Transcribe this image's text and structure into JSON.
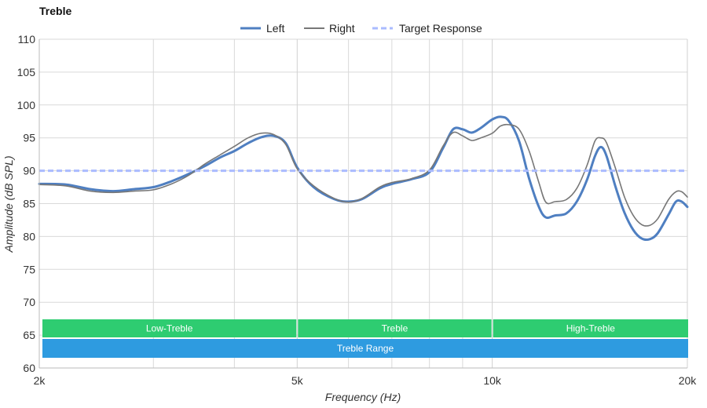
{
  "chart_data": {
    "type": "line",
    "title": "Treble",
    "xlabel": "Frequency (Hz)",
    "ylabel": "Amplitude (dB SPL)",
    "x_scale": "log",
    "xlim": [
      2000,
      20000
    ],
    "ylim": [
      60,
      110
    ],
    "x_ticks": [
      {
        "value": 2000,
        "label": "2k"
      },
      {
        "value": 5000,
        "label": "5k"
      },
      {
        "value": 10000,
        "label": "10k"
      },
      {
        "value": 20000,
        "label": "20k"
      }
    ],
    "x_minor_gridlines": [
      3000,
      4000,
      6000,
      7000,
      8000,
      9000
    ],
    "y_ticks": [
      60,
      65,
      70,
      75,
      80,
      85,
      90,
      95,
      100,
      105,
      110
    ],
    "grid": true,
    "legend_position": "top-center",
    "series": [
      {
        "name": "Left",
        "color": "#4f7fc1",
        "style": "solid-thick",
        "points": [
          [
            2000,
            88.0
          ],
          [
            2200,
            87.9
          ],
          [
            2400,
            87.2
          ],
          [
            2600,
            86.9
          ],
          [
            2800,
            87.2
          ],
          [
            3000,
            87.5
          ],
          [
            3200,
            88.4
          ],
          [
            3400,
            89.5
          ],
          [
            3600,
            90.7
          ],
          [
            3800,
            92.0
          ],
          [
            4000,
            93.0
          ],
          [
            4200,
            94.2
          ],
          [
            4400,
            95.1
          ],
          [
            4600,
            95.3
          ],
          [
            4800,
            94.2
          ],
          [
            5000,
            90.5
          ],
          [
            5300,
            87.5
          ],
          [
            5700,
            85.7
          ],
          [
            6000,
            85.3
          ],
          [
            6300,
            85.7
          ],
          [
            6700,
            87.3
          ],
          [
            7000,
            88.0
          ],
          [
            7500,
            88.7
          ],
          [
            8000,
            89.8
          ],
          [
            8400,
            93.5
          ],
          [
            8700,
            96.3
          ],
          [
            9000,
            96.3
          ],
          [
            9300,
            95.8
          ],
          [
            9600,
            96.5
          ],
          [
            10000,
            97.8
          ],
          [
            10300,
            98.2
          ],
          [
            10600,
            97.6
          ],
          [
            11000,
            94.5
          ],
          [
            11400,
            88.8
          ],
          [
            11800,
            84.5
          ],
          [
            12100,
            82.9
          ],
          [
            12500,
            83.2
          ],
          [
            13000,
            83.5
          ],
          [
            13500,
            85.3
          ],
          [
            14000,
            88.6
          ],
          [
            14400,
            92.2
          ],
          [
            14700,
            93.6
          ],
          [
            15000,
            92.3
          ],
          [
            15500,
            87.5
          ],
          [
            16000,
            83.6
          ],
          [
            16500,
            81.0
          ],
          [
            17000,
            79.7
          ],
          [
            17500,
            79.6
          ],
          [
            18000,
            80.5
          ],
          [
            18700,
            83.3
          ],
          [
            19200,
            85.3
          ],
          [
            19600,
            85.3
          ],
          [
            20000,
            84.5
          ]
        ]
      },
      {
        "name": "Right",
        "color": "#777777",
        "style": "solid-thin",
        "points": [
          [
            2000,
            87.9
          ],
          [
            2200,
            87.7
          ],
          [
            2400,
            86.9
          ],
          [
            2600,
            86.7
          ],
          [
            2800,
            86.9
          ],
          [
            3000,
            87.1
          ],
          [
            3200,
            88.0
          ],
          [
            3400,
            89.3
          ],
          [
            3600,
            91.0
          ],
          [
            3800,
            92.4
          ],
          [
            4000,
            93.7
          ],
          [
            4200,
            95.0
          ],
          [
            4400,
            95.7
          ],
          [
            4600,
            95.5
          ],
          [
            4800,
            94.0
          ],
          [
            5000,
            90.3
          ],
          [
            5300,
            87.7
          ],
          [
            5700,
            85.8
          ],
          [
            6000,
            85.2
          ],
          [
            6300,
            85.8
          ],
          [
            6700,
            87.5
          ],
          [
            7000,
            88.2
          ],
          [
            7500,
            88.8
          ],
          [
            8000,
            90.1
          ],
          [
            8400,
            93.8
          ],
          [
            8700,
            95.8
          ],
          [
            9000,
            95.3
          ],
          [
            9300,
            94.6
          ],
          [
            9600,
            95.0
          ],
          [
            10000,
            95.7
          ],
          [
            10300,
            96.8
          ],
          [
            10600,
            97.0
          ],
          [
            11000,
            96.3
          ],
          [
            11400,
            93.0
          ],
          [
            11800,
            88.2
          ],
          [
            12100,
            85.2
          ],
          [
            12500,
            85.3
          ],
          [
            13000,
            85.6
          ],
          [
            13500,
            87.3
          ],
          [
            14000,
            90.8
          ],
          [
            14400,
            94.5
          ],
          [
            14700,
            95.0
          ],
          [
            15000,
            94.3
          ],
          [
            15500,
            90.3
          ],
          [
            16000,
            86.0
          ],
          [
            16500,
            83.2
          ],
          [
            17000,
            81.8
          ],
          [
            17500,
            81.7
          ],
          [
            18000,
            82.7
          ],
          [
            18700,
            85.6
          ],
          [
            19200,
            86.8
          ],
          [
            19600,
            86.8
          ],
          [
            20000,
            86.0
          ]
        ]
      },
      {
        "name": "Target Response",
        "color": "#aabbff",
        "style": "dashed",
        "points": [
          [
            2000,
            90
          ],
          [
            20000,
            90
          ]
        ]
      }
    ],
    "bands": [
      {
        "label": "Low-Treble",
        "from": 2000,
        "to": 5000,
        "color": "#2ecc71",
        "row": 1
      },
      {
        "label": "Treble",
        "from": 5000,
        "to": 10000,
        "color": "#2ecc71",
        "row": 1
      },
      {
        "label": "High-Treble",
        "from": 10000,
        "to": 20000,
        "color": "#2ecc71",
        "row": 1
      },
      {
        "label": "Treble Range",
        "from": 2000,
        "to": 20000,
        "color": "#2e9be0",
        "row": 2
      }
    ]
  }
}
